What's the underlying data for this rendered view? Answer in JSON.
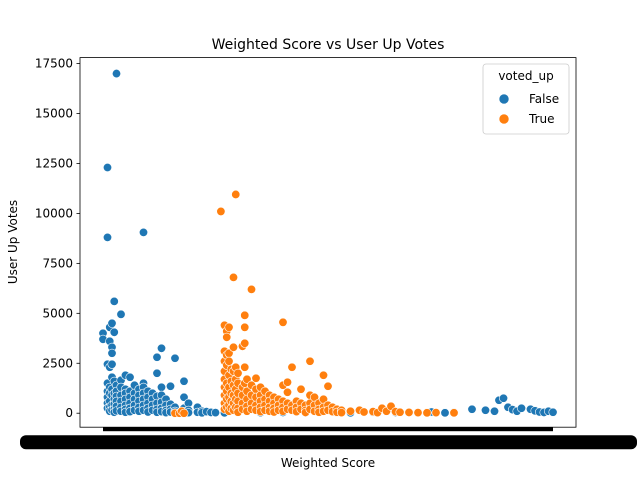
{
  "chart_data": {
    "type": "scatter",
    "title": "Weighted Score vs User Up Votes",
    "xlabel": "Weighted Score",
    "ylabel": "User Up Votes",
    "ylim": [
      -700,
      17800
    ],
    "yticks": [
      0,
      2500,
      5000,
      7500,
      10000,
      12500,
      15000,
      17500
    ],
    "x_ticks_overlapping": true,
    "grid": false,
    "legend": {
      "title": "voted_up",
      "position": "top-right"
    },
    "series": [
      {
        "name": "False",
        "color": "#1f77b4",
        "points": [
          [
            0.0,
            4000
          ],
          [
            0.0,
            3700
          ],
          [
            0.01,
            12300
          ],
          [
            0.01,
            8800
          ],
          [
            0.01,
            2450
          ],
          [
            0.01,
            1500
          ],
          [
            0.01,
            1100
          ],
          [
            0.01,
            800
          ],
          [
            0.01,
            500
          ],
          [
            0.01,
            250
          ],
          [
            0.015,
            4300
          ],
          [
            0.015,
            3600
          ],
          [
            0.015,
            2300
          ],
          [
            0.015,
            1300
          ],
          [
            0.015,
            1000
          ],
          [
            0.015,
            600
          ],
          [
            0.015,
            300
          ],
          [
            0.015,
            100
          ],
          [
            0.02,
            4500
          ],
          [
            0.02,
            3300
          ],
          [
            0.02,
            3000
          ],
          [
            0.02,
            2450
          ],
          [
            0.02,
            1800
          ],
          [
            0.02,
            1200
          ],
          [
            0.02,
            900
          ],
          [
            0.02,
            400
          ],
          [
            0.02,
            150
          ],
          [
            0.025,
            5600
          ],
          [
            0.025,
            4050
          ],
          [
            0.025,
            1600
          ],
          [
            0.025,
            1000
          ],
          [
            0.025,
            700
          ],
          [
            0.025,
            450
          ],
          [
            0.025,
            200
          ],
          [
            0.025,
            50
          ],
          [
            0.03,
            17000
          ],
          [
            0.03,
            1400
          ],
          [
            0.03,
            1100
          ],
          [
            0.03,
            850
          ],
          [
            0.03,
            600
          ],
          [
            0.03,
            350
          ],
          [
            0.03,
            120
          ],
          [
            0.04,
            4950
          ],
          [
            0.04,
            1650
          ],
          [
            0.04,
            1300
          ],
          [
            0.04,
            900
          ],
          [
            0.04,
            600
          ],
          [
            0.04,
            300
          ],
          [
            0.04,
            100
          ],
          [
            0.05,
            1900
          ],
          [
            0.05,
            1200
          ],
          [
            0.05,
            1000
          ],
          [
            0.05,
            700
          ],
          [
            0.05,
            400
          ],
          [
            0.05,
            200
          ],
          [
            0.05,
            50
          ],
          [
            0.06,
            1800
          ],
          [
            0.06,
            1100
          ],
          [
            0.06,
            800
          ],
          [
            0.06,
            500
          ],
          [
            0.06,
            250
          ],
          [
            0.06,
            80
          ],
          [
            0.07,
            1400
          ],
          [
            0.07,
            1000
          ],
          [
            0.07,
            700
          ],
          [
            0.07,
            400
          ],
          [
            0.07,
            150
          ],
          [
            0.08,
            1200
          ],
          [
            0.08,
            900
          ],
          [
            0.08,
            600
          ],
          [
            0.08,
            300
          ],
          [
            0.08,
            100
          ],
          [
            0.09,
            9050
          ],
          [
            0.09,
            1500
          ],
          [
            0.09,
            1300
          ],
          [
            0.09,
            1000
          ],
          [
            0.09,
            700
          ],
          [
            0.09,
            400
          ],
          [
            0.09,
            150
          ],
          [
            0.1,
            1100
          ],
          [
            0.1,
            800
          ],
          [
            0.1,
            500
          ],
          [
            0.1,
            250
          ],
          [
            0.1,
            60
          ],
          [
            0.11,
            1000
          ],
          [
            0.11,
            700
          ],
          [
            0.11,
            400
          ],
          [
            0.11,
            150
          ],
          [
            0.12,
            2800
          ],
          [
            0.12,
            2000
          ],
          [
            0.12,
            850
          ],
          [
            0.12,
            500
          ],
          [
            0.12,
            200
          ],
          [
            0.12,
            50
          ],
          [
            0.13,
            1300
          ],
          [
            0.13,
            3250
          ],
          [
            0.13,
            900
          ],
          [
            0.13,
            550
          ],
          [
            0.13,
            250
          ],
          [
            0.13,
            80
          ],
          [
            0.14,
            700
          ],
          [
            0.14,
            400
          ],
          [
            0.14,
            150
          ],
          [
            0.14,
            30
          ],
          [
            0.15,
            1350
          ],
          [
            0.15,
            450
          ],
          [
            0.15,
            200
          ],
          [
            0.15,
            60
          ],
          [
            0.16,
            2750
          ],
          [
            0.16,
            300
          ],
          [
            0.16,
            100
          ],
          [
            0.16,
            20
          ],
          [
            0.18,
            1600
          ],
          [
            0.18,
            800
          ],
          [
            0.18,
            250
          ],
          [
            0.18,
            80
          ],
          [
            0.19,
            500
          ],
          [
            0.19,
            150
          ],
          [
            0.19,
            30
          ],
          [
            0.21,
            300
          ],
          [
            0.21,
            50
          ],
          [
            0.22,
            100
          ],
          [
            0.22,
            20
          ],
          [
            0.23,
            80
          ],
          [
            0.24,
            40
          ],
          [
            0.25,
            30
          ],
          [
            0.27,
            20
          ],
          [
            0.3,
            60
          ],
          [
            0.35,
            30
          ],
          [
            0.4,
            40
          ],
          [
            0.45,
            20
          ],
          [
            0.52,
            30
          ],
          [
            0.55,
            20
          ],
          [
            0.6,
            50
          ],
          [
            0.65,
            40
          ],
          [
            0.7,
            30
          ],
          [
            0.73,
            60
          ],
          [
            0.76,
            20
          ],
          [
            0.78,
            30
          ],
          [
            0.82,
            200
          ],
          [
            0.85,
            150
          ],
          [
            0.87,
            100
          ],
          [
            0.88,
            650
          ],
          [
            0.89,
            750
          ],
          [
            0.9,
            300
          ],
          [
            0.91,
            180
          ],
          [
            0.92,
            100
          ],
          [
            0.93,
            250
          ],
          [
            0.95,
            200
          ],
          [
            0.96,
            120
          ],
          [
            0.97,
            60
          ],
          [
            0.98,
            40
          ],
          [
            0.99,
            100
          ],
          [
            1.0,
            50
          ]
        ]
      },
      {
        "name": "True",
        "color": "#ff7f0e",
        "points": [
          [
            0.16,
            0
          ],
          [
            0.17,
            0
          ],
          [
            0.175,
            100
          ],
          [
            0.18,
            0
          ],
          [
            0.262,
            10100
          ],
          [
            0.27,
            4400
          ],
          [
            0.27,
            3100
          ],
          [
            0.27,
            2600
          ],
          [
            0.27,
            2100
          ],
          [
            0.27,
            1700
          ],
          [
            0.27,
            1300
          ],
          [
            0.27,
            900
          ],
          [
            0.27,
            500
          ],
          [
            0.27,
            200
          ],
          [
            0.275,
            4100
          ],
          [
            0.275,
            3800
          ],
          [
            0.275,
            2900
          ],
          [
            0.275,
            2400
          ],
          [
            0.275,
            1500
          ],
          [
            0.275,
            1100
          ],
          [
            0.275,
            700
          ],
          [
            0.275,
            300
          ],
          [
            0.28,
            4300
          ],
          [
            0.28,
            3000
          ],
          [
            0.28,
            2600
          ],
          [
            0.28,
            1900
          ],
          [
            0.28,
            1300
          ],
          [
            0.28,
            800
          ],
          [
            0.28,
            400
          ],
          [
            0.28,
            100
          ],
          [
            0.285,
            2200
          ],
          [
            0.285,
            1600
          ],
          [
            0.285,
            1000
          ],
          [
            0.285,
            600
          ],
          [
            0.285,
            250
          ],
          [
            0.29,
            6800
          ],
          [
            0.29,
            3300
          ],
          [
            0.29,
            2100
          ],
          [
            0.29,
            1400
          ],
          [
            0.29,
            900
          ],
          [
            0.29,
            500
          ],
          [
            0.29,
            150
          ],
          [
            0.295,
            10950
          ],
          [
            0.295,
            2300
          ],
          [
            0.295,
            1700
          ],
          [
            0.295,
            1200
          ],
          [
            0.295,
            700
          ],
          [
            0.295,
            300
          ],
          [
            0.3,
            2000
          ],
          [
            0.3,
            1500
          ],
          [
            0.3,
            1000
          ],
          [
            0.3,
            600
          ],
          [
            0.3,
            250
          ],
          [
            0.3,
            50
          ],
          [
            0.31,
            3350
          ],
          [
            0.31,
            1300
          ],
          [
            0.31,
            900
          ],
          [
            0.31,
            500
          ],
          [
            0.31,
            200
          ],
          [
            0.315,
            4900
          ],
          [
            0.315,
            4300
          ],
          [
            0.315,
            3500
          ],
          [
            0.315,
            2300
          ],
          [
            0.315,
            1500
          ],
          [
            0.32,
            1700
          ],
          [
            0.32,
            1100
          ],
          [
            0.32,
            700
          ],
          [
            0.32,
            350
          ],
          [
            0.32,
            100
          ],
          [
            0.33,
            6200
          ],
          [
            0.33,
            1400
          ],
          [
            0.33,
            900
          ],
          [
            0.33,
            500
          ],
          [
            0.33,
            200
          ],
          [
            0.34,
            1750
          ],
          [
            0.34,
            1200
          ],
          [
            0.34,
            800
          ],
          [
            0.34,
            400
          ],
          [
            0.34,
            150
          ],
          [
            0.35,
            1300
          ],
          [
            0.35,
            900
          ],
          [
            0.35,
            600
          ],
          [
            0.35,
            300
          ],
          [
            0.35,
            80
          ],
          [
            0.36,
            1100
          ],
          [
            0.36,
            700
          ],
          [
            0.36,
            400
          ],
          [
            0.36,
            150
          ],
          [
            0.37,
            900
          ],
          [
            0.37,
            600
          ],
          [
            0.37,
            300
          ],
          [
            0.37,
            100
          ],
          [
            0.38,
            800
          ],
          [
            0.38,
            500
          ],
          [
            0.38,
            250
          ],
          [
            0.38,
            60
          ],
          [
            0.39,
            700
          ],
          [
            0.39,
            400
          ],
          [
            0.39,
            150
          ],
          [
            0.4,
            4550
          ],
          [
            0.4,
            1400
          ],
          [
            0.4,
            600
          ],
          [
            0.4,
            300
          ],
          [
            0.4,
            100
          ],
          [
            0.41,
            1550
          ],
          [
            0.41,
            1050
          ],
          [
            0.41,
            500
          ],
          [
            0.41,
            200
          ],
          [
            0.42,
            2300
          ],
          [
            0.42,
            400
          ],
          [
            0.42,
            150
          ],
          [
            0.43,
            600
          ],
          [
            0.43,
            300
          ],
          [
            0.43,
            80
          ],
          [
            0.44,
            1200
          ],
          [
            0.44,
            500
          ],
          [
            0.44,
            200
          ],
          [
            0.45,
            400
          ],
          [
            0.45,
            150
          ],
          [
            0.45,
            40
          ],
          [
            0.46,
            2600
          ],
          [
            0.46,
            900
          ],
          [
            0.46,
            500
          ],
          [
            0.46,
            200
          ],
          [
            0.47,
            800
          ],
          [
            0.47,
            400
          ],
          [
            0.47,
            100
          ],
          [
            0.48,
            500
          ],
          [
            0.48,
            200
          ],
          [
            0.48,
            50
          ],
          [
            0.49,
            1900
          ],
          [
            0.49,
            700
          ],
          [
            0.49,
            300
          ],
          [
            0.49,
            100
          ],
          [
            0.5,
            1350
          ],
          [
            0.5,
            400
          ],
          [
            0.5,
            150
          ],
          [
            0.51,
            300
          ],
          [
            0.51,
            80
          ],
          [
            0.52,
            200
          ],
          [
            0.52,
            50
          ],
          [
            0.53,
            150
          ],
          [
            0.53,
            30
          ],
          [
            0.55,
            100
          ],
          [
            0.57,
            150
          ],
          [
            0.58,
            60
          ],
          [
            0.6,
            80
          ],
          [
            0.61,
            30
          ],
          [
            0.62,
            250
          ],
          [
            0.63,
            100
          ],
          [
            0.64,
            350
          ],
          [
            0.65,
            80
          ],
          [
            0.66,
            50
          ],
          [
            0.68,
            40
          ],
          [
            0.7,
            30
          ],
          [
            0.72,
            20
          ],
          [
            0.74,
            30
          ],
          [
            0.78,
            20
          ]
        ]
      }
    ]
  }
}
